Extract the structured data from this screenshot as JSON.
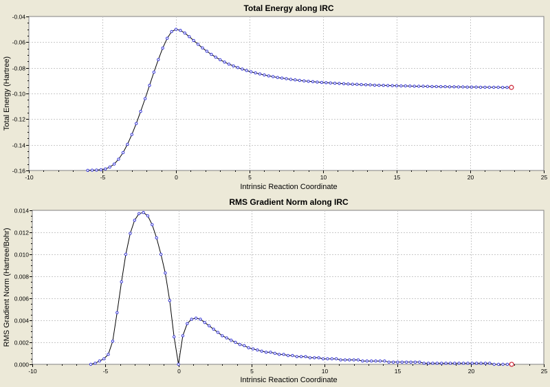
{
  "chart_data": [
    {
      "type": "line",
      "title": "Total Energy along IRC",
      "xlabel": "Intrinsic Reaction Coordinate",
      "ylabel": "Total Energy (Hartree)",
      "xlim": [
        -10,
        25
      ],
      "ylim": [
        -0.16,
        -0.04
      ],
      "xticks": [
        -10,
        -5,
        0,
        5,
        10,
        15,
        20,
        25
      ],
      "yticks": [
        -0.16,
        -0.14,
        -0.12,
        -0.1,
        -0.08,
        -0.06,
        -0.04
      ],
      "xtick_labels": [
        "-10",
        "-5",
        "0",
        "5",
        "10",
        "15",
        "20",
        "25"
      ],
      "ytick_labels": [
        "-0.16",
        "-0.14",
        "-0.12",
        "-0.10",
        "-0.08",
        "-0.06",
        "-0.04"
      ],
      "grid": true,
      "line_color": "#000000",
      "marker_color": "#3b3bd8",
      "last_marker_color": "#d03040",
      "x": [
        -6.0,
        -5.7,
        -5.4,
        -5.1,
        -4.8,
        -4.5,
        -4.2,
        -3.9,
        -3.6,
        -3.3,
        -3.0,
        -2.7,
        -2.4,
        -2.1,
        -1.8,
        -1.5,
        -1.2,
        -0.9,
        -0.6,
        -0.3,
        0.0,
        0.3,
        0.6,
        0.9,
        1.2,
        1.5,
        1.8,
        2.1,
        2.4,
        2.7,
        3.0,
        3.3,
        3.6,
        3.9,
        4.2,
        4.5,
        4.8,
        5.1,
        5.4,
        5.7,
        6.0,
        6.3,
        6.6,
        6.9,
        7.2,
        7.5,
        7.8,
        8.1,
        8.4,
        8.7,
        9.0,
        9.3,
        9.6,
        9.9,
        10.2,
        10.5,
        10.8,
        11.1,
        11.4,
        11.7,
        12.0,
        12.3,
        12.6,
        12.9,
        13.2,
        13.5,
        13.8,
        14.1,
        14.4,
        14.7,
        15.0,
        15.3,
        15.6,
        15.9,
        16.2,
        16.5,
        16.8,
        17.1,
        17.4,
        17.7,
        18.0,
        18.3,
        18.6,
        18.9,
        19.2,
        19.5,
        19.8,
        20.1,
        20.4,
        20.7,
        21.0,
        21.3,
        21.6,
        21.9,
        22.2,
        22.5,
        22.8
      ],
      "y": [
        -0.1599,
        -0.1598,
        -0.1597,
        -0.1594,
        -0.1588,
        -0.1574,
        -0.155,
        -0.1512,
        -0.1461,
        -0.1396,
        -0.132,
        -0.1234,
        -0.114,
        -0.104,
        -0.0937,
        -0.0834,
        -0.0736,
        -0.0646,
        -0.057,
        -0.0518,
        -0.05,
        -0.0508,
        -0.0529,
        -0.0557,
        -0.0587,
        -0.0617,
        -0.0645,
        -0.0671,
        -0.0695,
        -0.0717,
        -0.0737,
        -0.0755,
        -0.0771,
        -0.0785,
        -0.0798,
        -0.081,
        -0.0821,
        -0.0831,
        -0.084,
        -0.0848,
        -0.0856,
        -0.0863,
        -0.0869,
        -0.0875,
        -0.088,
        -0.0885,
        -0.089,
        -0.0894,
        -0.0898,
        -0.0902,
        -0.0905,
        -0.0908,
        -0.0911,
        -0.0914,
        -0.0916,
        -0.0918,
        -0.092,
        -0.0922,
        -0.0924,
        -0.0926,
        -0.0928,
        -0.0929,
        -0.0931,
        -0.0932,
        -0.0933,
        -0.0935,
        -0.0936,
        -0.0937,
        -0.0938,
        -0.0939,
        -0.094,
        -0.0941,
        -0.0941,
        -0.0942,
        -0.0943,
        -0.0944,
        -0.0944,
        -0.0945,
        -0.0946,
        -0.0946,
        -0.0947,
        -0.0947,
        -0.0948,
        -0.0948,
        -0.0949,
        -0.0949,
        -0.095,
        -0.095,
        -0.095,
        -0.0951,
        -0.0951,
        -0.0952,
        -0.0952,
        -0.0952,
        -0.0953,
        -0.0953,
        -0.0953
      ]
    },
    {
      "type": "line",
      "title": "RMS Gradient Norm along IRC",
      "xlabel": "Intrinsic Reaction Coordinate",
      "ylabel": "RMS Gradient Norm (Hartree/Bohr)",
      "xlim": [
        -10,
        25
      ],
      "ylim": [
        0,
        0.014
      ],
      "xticks": [
        -10,
        -5,
        0,
        5,
        10,
        15,
        20,
        25
      ],
      "yticks": [
        0,
        0.002,
        0.004,
        0.006,
        0.008,
        0.01,
        0.012,
        0.014
      ],
      "xtick_labels": [
        "-10",
        "-5",
        "0",
        "5",
        "10",
        "15",
        "20",
        "25"
      ],
      "ytick_labels": [
        "0.000",
        "0.002",
        "0.004",
        "0.006",
        "0.008",
        "0.010",
        "0.012",
        "0.014"
      ],
      "grid": true,
      "line_color": "#000000",
      "marker_color": "#3b3bd8",
      "last_marker_color": "#d03040",
      "x": [
        -6.0,
        -5.7,
        -5.4,
        -5.1,
        -4.8,
        -4.5,
        -4.2,
        -3.9,
        -3.6,
        -3.3,
        -3.0,
        -2.7,
        -2.4,
        -2.1,
        -1.8,
        -1.5,
        -1.2,
        -0.9,
        -0.6,
        -0.3,
        0.0,
        0.3,
        0.6,
        0.9,
        1.2,
        1.5,
        1.8,
        2.1,
        2.4,
        2.7,
        3.0,
        3.3,
        3.6,
        3.9,
        4.2,
        4.5,
        4.8,
        5.1,
        5.4,
        5.7,
        6.0,
        6.3,
        6.6,
        6.9,
        7.2,
        7.5,
        7.8,
        8.1,
        8.4,
        8.7,
        9.0,
        9.3,
        9.6,
        9.9,
        10.2,
        10.5,
        10.8,
        11.1,
        11.4,
        11.7,
        12.0,
        12.3,
        12.6,
        12.9,
        13.2,
        13.5,
        13.8,
        14.1,
        14.4,
        14.7,
        15.0,
        15.3,
        15.6,
        15.9,
        16.2,
        16.5,
        16.8,
        17.1,
        17.4,
        17.7,
        18.0,
        18.3,
        18.6,
        18.9,
        19.2,
        19.5,
        19.8,
        20.1,
        20.4,
        20.7,
        21.0,
        21.3,
        21.6,
        21.9,
        22.2,
        22.5,
        22.8
      ],
      "y": [
        0.0,
        0.0001,
        0.0003,
        0.0005,
        0.0009,
        0.0021,
        0.0047,
        0.0075,
        0.01,
        0.0119,
        0.0131,
        0.0137,
        0.0138,
        0.0135,
        0.0127,
        0.0115,
        0.01,
        0.0083,
        0.0058,
        0.0025,
        0.0,
        0.0026,
        0.0037,
        0.0041,
        0.0042,
        0.0041,
        0.0038,
        0.0035,
        0.0032,
        0.0029,
        0.0026,
        0.0024,
        0.0022,
        0.002,
        0.0018,
        0.0017,
        0.0015,
        0.0014,
        0.0013,
        0.0012,
        0.0011,
        0.0011,
        0.001,
        0.0009,
        0.0009,
        0.0008,
        0.0008,
        0.0007,
        0.0007,
        0.0007,
        0.0006,
        0.0006,
        0.0006,
        0.0005,
        0.0005,
        0.0005,
        0.0005,
        0.0004,
        0.0004,
        0.0004,
        0.0004,
        0.0004,
        0.0003,
        0.0003,
        0.0003,
        0.0003,
        0.0003,
        0.0003,
        0.0002,
        0.0002,
        0.0002,
        0.0002,
        0.0002,
        0.0002,
        0.0002,
        0.0002,
        0.0001,
        0.0001,
        0.0001,
        0.0001,
        0.0001,
        0.0001,
        0.0001,
        0.0001,
        0.0001,
        0.0001,
        0.0001,
        0.0001,
        0.0001,
        0.0001,
        0.0001,
        0.0001,
        0.0,
        0.0,
        0.0,
        0.0,
        0.0
      ]
    }
  ]
}
